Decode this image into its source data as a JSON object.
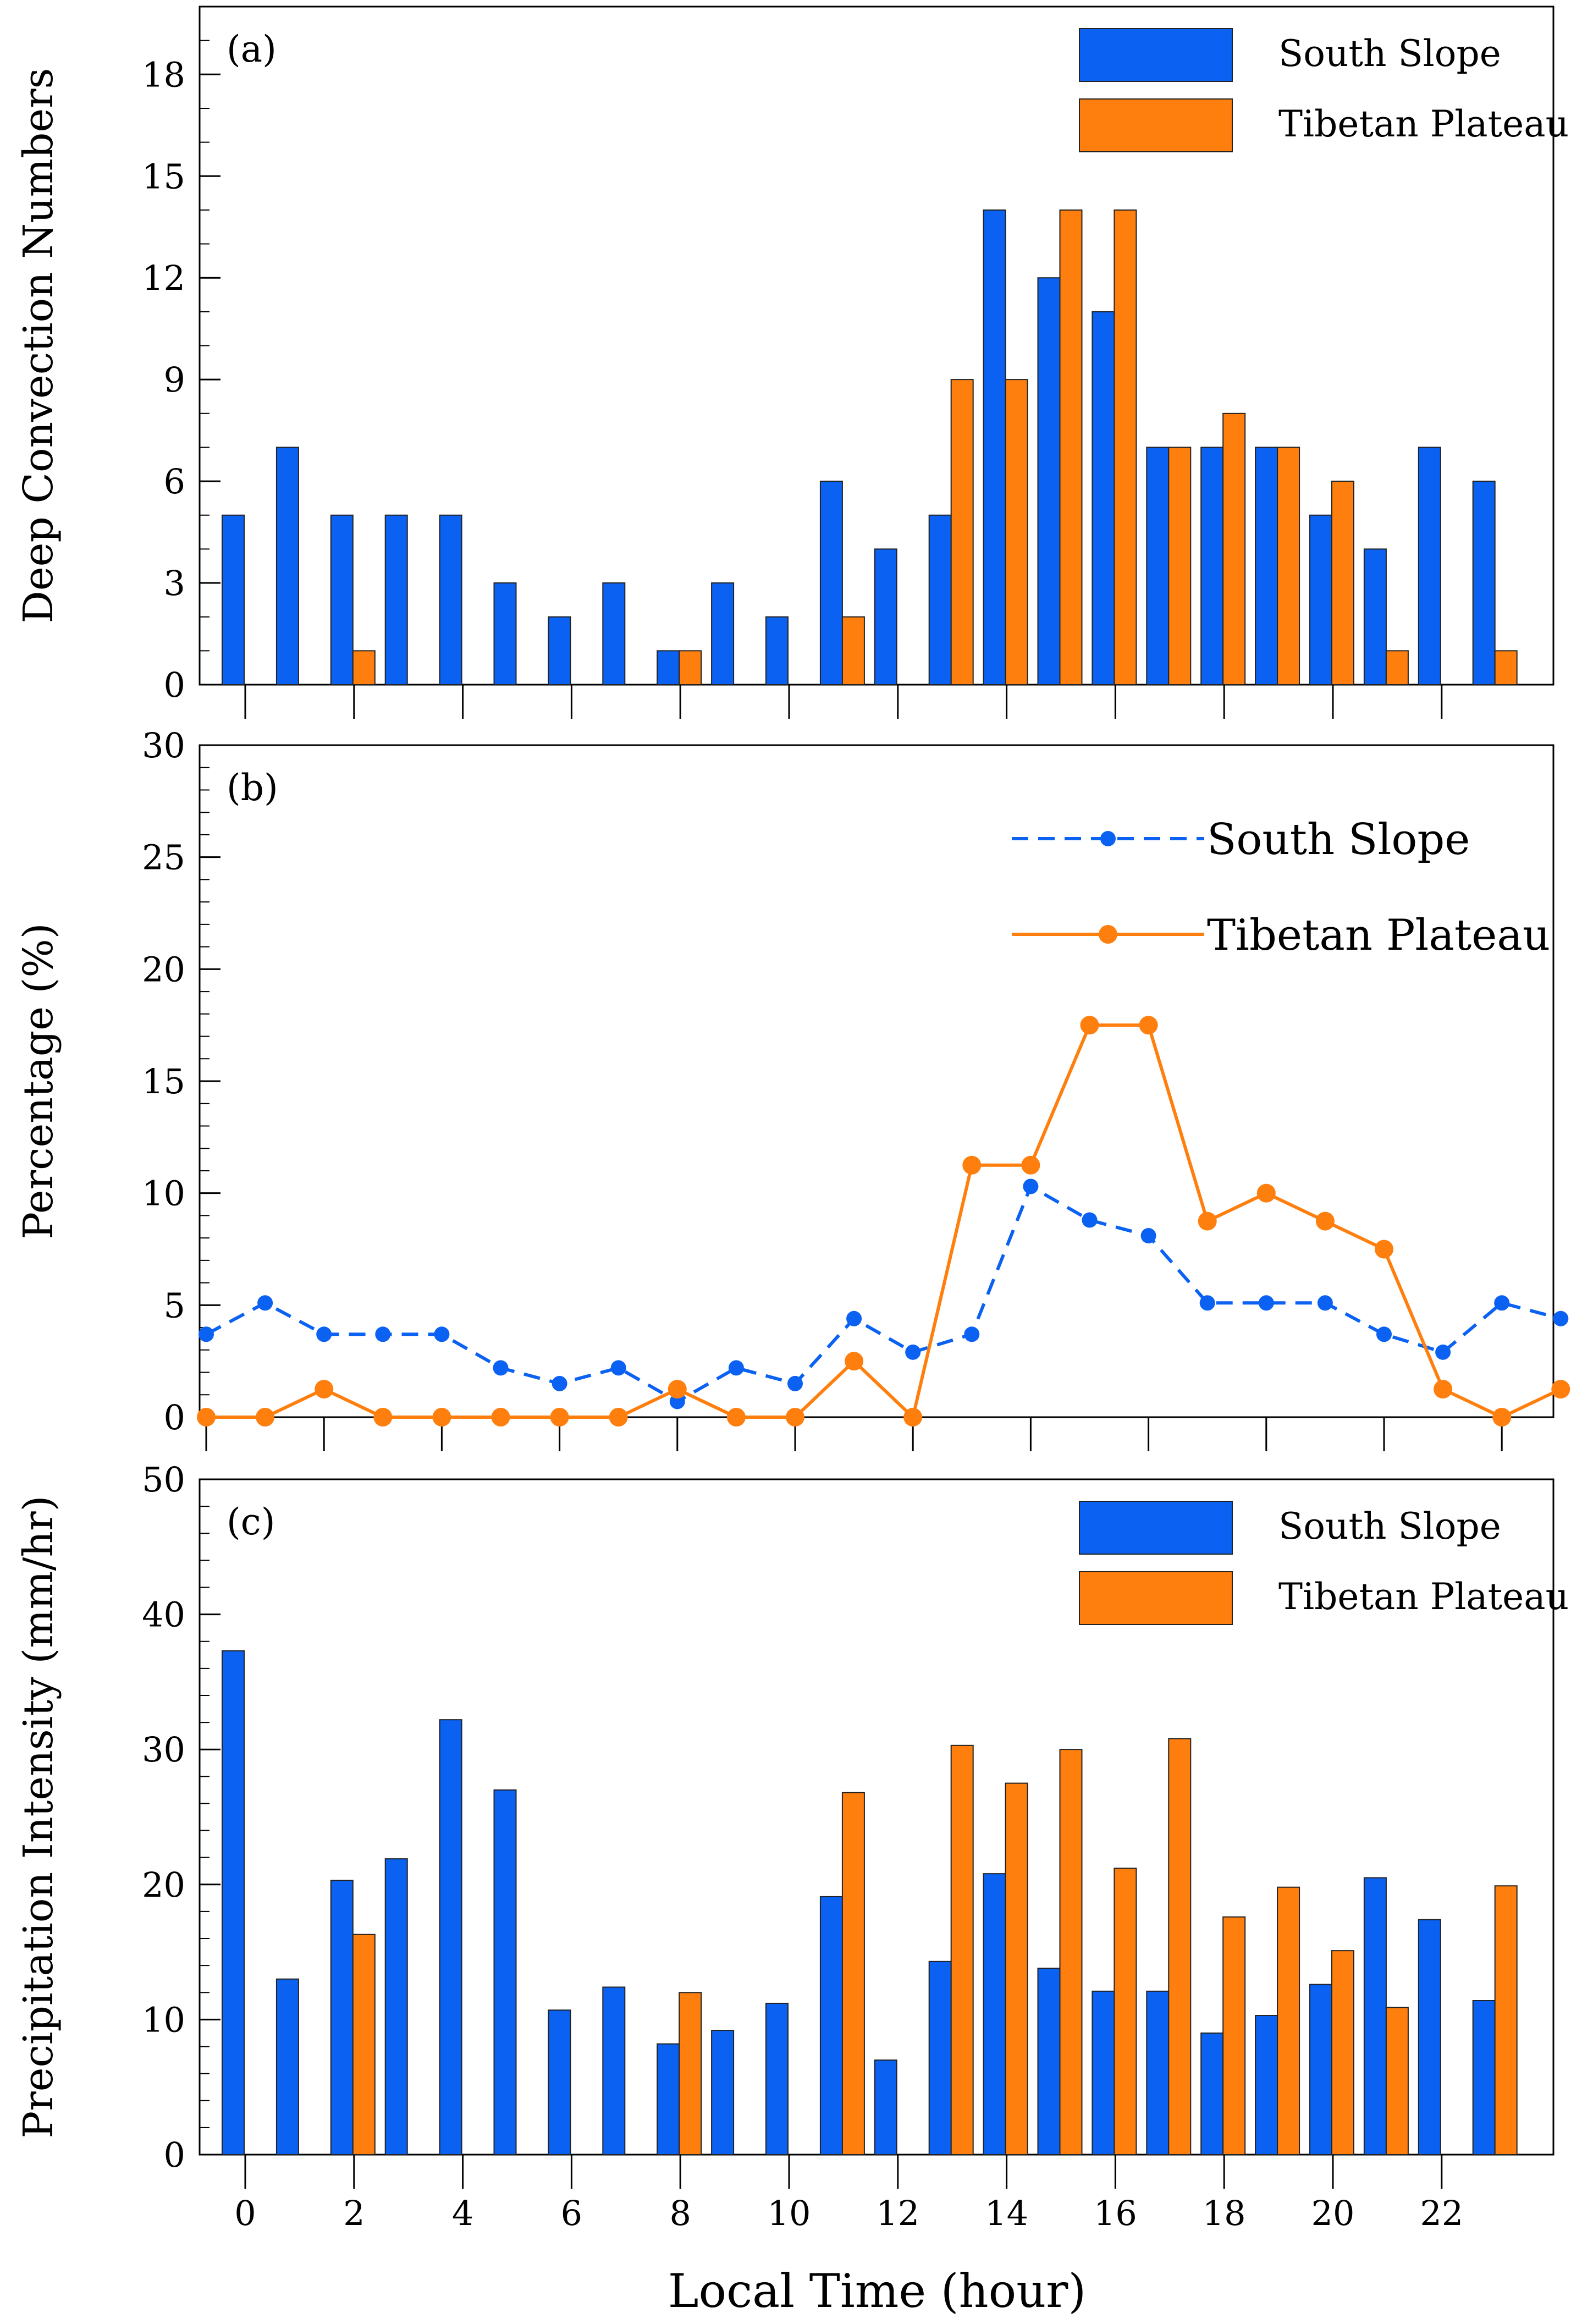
{
  "colors": {
    "south": "#0b62f2",
    "tibet": "#ff7f0e",
    "axis": "#000000"
  },
  "xaxis": {
    "ticks": [
      0,
      2,
      4,
      6,
      8,
      10,
      12,
      14,
      16,
      18,
      20,
      22
    ],
    "tick_labels": [
      "0",
      "2",
      "4",
      "6",
      "8",
      "10",
      "12",
      "14",
      "16",
      "18",
      "20",
      "22"
    ],
    "xlabel": "Local Time (hour)"
  },
  "chart_data": [
    {
      "type": "bar",
      "panel_label": "(a)",
      "ylabel": "Deep Convection Numbers",
      "ylim": [
        0,
        20
      ],
      "yticks": [
        0,
        3,
        6,
        9,
        12,
        15,
        18
      ],
      "ytick_labels": [
        "0",
        "3",
        "6",
        "9",
        "12",
        "15",
        "18"
      ],
      "hours": [
        0,
        1,
        2,
        3,
        4,
        5,
        6,
        7,
        8,
        9,
        10,
        11,
        12,
        13,
        14,
        15,
        16,
        17,
        18,
        19,
        20,
        21,
        22,
        23
      ],
      "series": [
        {
          "name": "South Slope",
          "values": [
            5,
            7,
            5,
            5,
            5,
            3,
            2,
            3,
            1,
            3,
            2,
            6,
            4,
            5,
            14,
            12,
            11,
            7,
            7,
            7,
            5,
            4,
            7,
            6
          ]
        },
        {
          "name": "Tibetan Plateau",
          "values": [
            0,
            0,
            1,
            0,
            0,
            0,
            0,
            0,
            1,
            0,
            0,
            2,
            0,
            9,
            9,
            14,
            14,
            7,
            8,
            7,
            6,
            1,
            0,
            1
          ]
        }
      ],
      "legend": [
        "South Slope",
        "Tibetan Plateau"
      ],
      "legend_position": "top-right"
    },
    {
      "type": "line",
      "panel_label": "(b)",
      "ylabel": "Percentage (%)",
      "ylim": [
        0,
        30
      ],
      "yticks": [
        0,
        5,
        10,
        15,
        20,
        25,
        30
      ],
      "ytick_labels": [
        "0",
        "5",
        "10",
        "15",
        "20",
        "25",
        "30"
      ],
      "hours": [
        0,
        1,
        2,
        3,
        4,
        5,
        6,
        7,
        8,
        9,
        10,
        11,
        12,
        13,
        14,
        15,
        16,
        17,
        18,
        19,
        20,
        21,
        22,
        23
      ],
      "series": [
        {
          "name": "South Slope",
          "style": "dashed",
          "values": [
            3.7,
            5.1,
            3.7,
            3.7,
            3.7,
            2.2,
            1.5,
            2.2,
            0.7,
            2.2,
            1.5,
            4.4,
            2.9,
            3.7,
            10.3,
            8.8,
            8.1,
            5.1,
            5.1,
            5.1,
            3.7,
            2.9,
            5.1,
            4.4
          ]
        },
        {
          "name": "Tibetan Plateau",
          "style": "solid",
          "values": [
            0,
            0,
            1.25,
            0,
            0,
            0,
            0,
            0,
            1.25,
            0,
            0,
            2.5,
            0,
            11.25,
            11.25,
            17.5,
            17.5,
            8.75,
            10,
            8.75,
            7.5,
            1.25,
            0,
            1.25
          ]
        }
      ],
      "legend": [
        "South Slope",
        "Tibetan Plateau"
      ],
      "legend_position": "top-right"
    },
    {
      "type": "bar",
      "panel_label": "(c)",
      "ylabel": "Precipitation Intensity (mm/hr)",
      "ylim": [
        0,
        50
      ],
      "yticks": [
        0,
        10,
        20,
        30,
        40,
        50
      ],
      "ytick_labels": [
        "0",
        "10",
        "20",
        "30",
        "40",
        "50"
      ],
      "hours": [
        0,
        1,
        2,
        3,
        4,
        5,
        6,
        7,
        8,
        9,
        10,
        11,
        12,
        13,
        14,
        15,
        16,
        17,
        18,
        19,
        20,
        21,
        22,
        23
      ],
      "series": [
        {
          "name": "South Slope",
          "values": [
            37.3,
            13.0,
            20.3,
            21.9,
            32.2,
            27.0,
            10.7,
            12.4,
            8.2,
            9.2,
            11.2,
            19.1,
            7.0,
            14.3,
            20.8,
            13.8,
            12.1,
            12.1,
            9.0,
            10.3,
            12.6,
            20.5,
            17.4,
            11.4
          ]
        },
        {
          "name": "Tibetan Plateau",
          "values": [
            null,
            null,
            16.3,
            null,
            null,
            null,
            null,
            null,
            12.0,
            null,
            null,
            26.8,
            null,
            30.3,
            27.5,
            30.0,
            21.2,
            30.8,
            17.6,
            19.8,
            15.1,
            10.9,
            null,
            19.9
          ]
        }
      ],
      "legend": [
        "South Slope",
        "Tibetan Plateau"
      ],
      "legend_position": "top-right"
    }
  ]
}
